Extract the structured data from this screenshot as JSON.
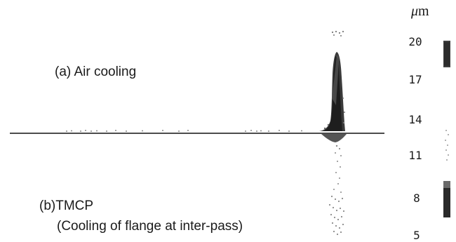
{
  "labels": {
    "air_cooling": "(a) Air cooling",
    "tmcp_line1": "(b)TMCP",
    "tmcp_line2": "(Cooling of flange at inter-pass)"
  },
  "scale": {
    "unit_mu": "μ",
    "unit_m": "m",
    "ticks": [
      "20",
      "17",
      "14",
      "11",
      "8",
      "5"
    ]
  },
  "colors": {
    "background": "#ffffff",
    "ink": "#1a1a1a",
    "axis_line": "#111111",
    "scale_dark": "#333333",
    "scale_light": "#bdbdbd"
  }
}
